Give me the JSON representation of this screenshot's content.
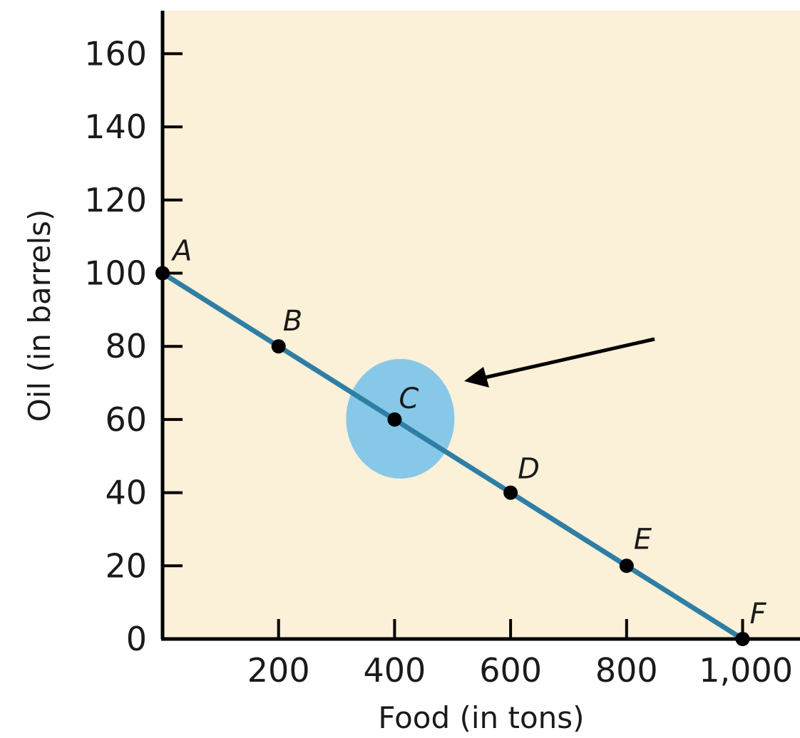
{
  "chart_data": {
    "type": "line",
    "title": "",
    "xlabel": "Food (in tons)",
    "ylabel": "Oil (in barrels)",
    "xlim": [
      0,
      1000
    ],
    "ylim": [
      0,
      170
    ],
    "x_ticks": [
      200,
      400,
      600,
      800,
      1000
    ],
    "x_tick_labels": [
      "200",
      "400",
      "600",
      "800",
      "1,000"
    ],
    "y_ticks": [
      0,
      20,
      40,
      60,
      80,
      100,
      120,
      140,
      160
    ],
    "y_tick_labels": [
      "0",
      "20",
      "40",
      "60",
      "80",
      "100",
      "120",
      "140",
      "160"
    ],
    "grid": false,
    "series": [
      {
        "color": "#2f7ea4",
        "points": [
          {
            "label": "A",
            "x": 0,
            "y": 100
          },
          {
            "label": "B",
            "x": 200,
            "y": 80
          },
          {
            "label": "C",
            "x": 400,
            "y": 60
          },
          {
            "label": "D",
            "x": 600,
            "y": 40
          },
          {
            "label": "E",
            "x": 800,
            "y": 20
          },
          {
            "label": "F",
            "x": 1000,
            "y": 0
          }
        ]
      }
    ],
    "annotations": [
      {
        "type": "highlight-circle",
        "target": "C",
        "color": "#87c8e8"
      },
      {
        "type": "arrow",
        "target": "C",
        "color": "#000000"
      }
    ],
    "colors": {
      "plot_background": "#fbf0d8",
      "axis": "#000000",
      "point": "#000000"
    }
  }
}
